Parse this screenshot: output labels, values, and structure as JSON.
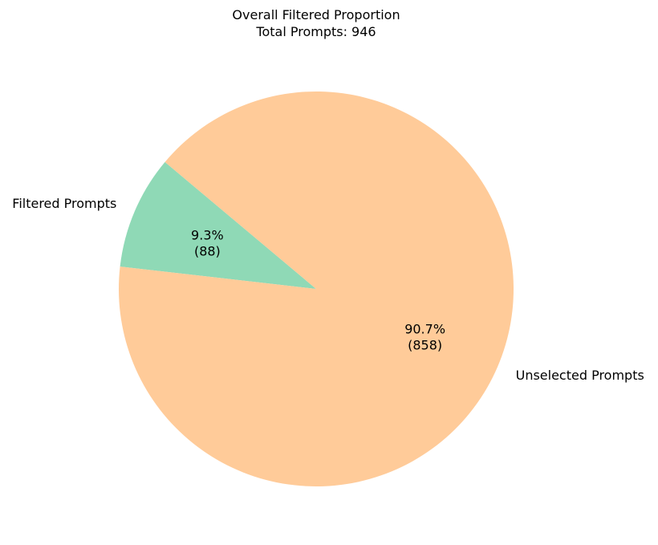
{
  "chart_data": {
    "type": "pie",
    "title": "Overall Filtered Proportion",
    "subtitle": "Total Prompts: 946",
    "start_angle_deg": 140,
    "slices": [
      {
        "label": "Filtered Prompts",
        "value": 88,
        "percent": 9.3,
        "percent_label": "9.3%",
        "count_label": "(88)",
        "color": "#8fd9b6"
      },
      {
        "label": "Unselected Prompts",
        "value": 858,
        "percent": 90.7,
        "percent_label": "90.7%",
        "count_label": "(858)",
        "color": "#ffcb99"
      }
    ]
  }
}
